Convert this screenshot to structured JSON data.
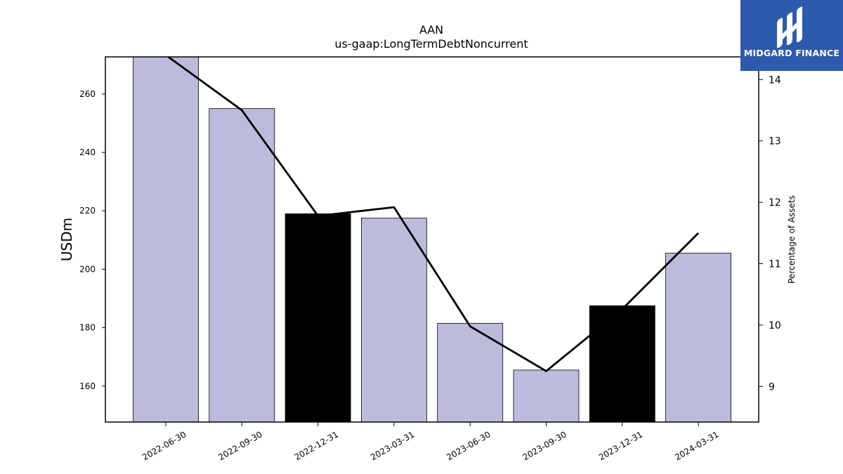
{
  "brand": {
    "name": "MIDGARD FINANCE",
    "color": "#2d5aad"
  },
  "chart_data": {
    "type": "bar",
    "title": "AAN",
    "subtitle": "us-gaap:LongTermDebtNoncurrent",
    "ylabel": "USDm",
    "y2label": "Percentage of Assets",
    "categories": [
      "2022-06-30",
      "2022-09-30",
      "2022-12-31",
      "2023-03-31",
      "2023-06-30",
      "2023-09-30",
      "2023-12-31",
      "2024-03-31"
    ],
    "values": [
      273,
      255,
      219,
      217.5,
      181.5,
      165.5,
      187.5,
      205.5
    ],
    "highlight": [
      false,
      false,
      true,
      false,
      false,
      false,
      true,
      false
    ],
    "bar_color": "#bdbbdb",
    "highlight_color": "#000000",
    "ylim": [
      147.7,
      272.7
    ],
    "yticks": [
      160,
      180,
      200,
      220,
      240,
      260
    ],
    "line_series": {
      "name": "Percentage of Assets",
      "values": [
        14.4,
        13.5,
        11.78,
        11.92,
        9.98,
        9.25,
        10.26,
        11.5
      ]
    },
    "y2lim": [
      8.42,
      14.37
    ],
    "y2ticks": [
      9,
      10,
      11,
      12,
      13,
      14
    ],
    "grid": false
  }
}
